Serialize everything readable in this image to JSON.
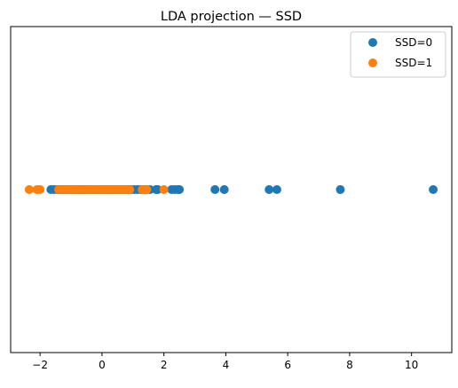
{
  "chart_data": {
    "type": "scatter",
    "title": "LDA projection — SSD",
    "xlabel": "",
    "ylabel": "",
    "xlim": [
      -2.95,
      11.3
    ],
    "ylim": [
      -1,
      1
    ],
    "xticks": [
      -2,
      0,
      2,
      4,
      6,
      8,
      10
    ],
    "xtick_labels": [
      "−2",
      "0",
      "2",
      "4",
      "6",
      "8",
      "10"
    ],
    "yticks": [],
    "grid": false,
    "legend_position": "top-right",
    "series": [
      {
        "name": "SSD=0",
        "color": "#1f77b4",
        "x": [
          -1.65,
          -1.55,
          -1.45,
          -1.35,
          -1.25,
          -1.15,
          -1.05,
          -0.95,
          -0.85,
          -0.75,
          -0.65,
          -0.55,
          -0.45,
          -0.35,
          -0.25,
          -0.15,
          -0.05,
          0.05,
          0.15,
          0.25,
          0.35,
          0.45,
          0.55,
          0.65,
          0.75,
          0.85,
          0.95,
          1.05,
          1.15,
          1.25,
          1.35,
          1.45,
          1.55,
          1.75,
          1.8,
          2.25,
          2.35,
          2.45,
          2.5,
          3.65,
          3.95,
          5.4,
          5.65,
          7.7,
          10.7
        ],
        "y": [
          0,
          0,
          0,
          0,
          0,
          0,
          0,
          0,
          0,
          0,
          0,
          0,
          0,
          0,
          0,
          0,
          0,
          0,
          0,
          0,
          0,
          0,
          0,
          0,
          0,
          0,
          0,
          0,
          0,
          0,
          0,
          0,
          0,
          0,
          0,
          0,
          0,
          0,
          0,
          0,
          0,
          0,
          0,
          0,
          0
        ]
      },
      {
        "name": "SSD=1",
        "color": "#ff7f0e",
        "x": [
          -2.35,
          -2.1,
          -2.0,
          -1.4,
          -1.3,
          -1.2,
          -1.1,
          -1.0,
          -0.9,
          -0.8,
          -0.7,
          -0.6,
          -0.5,
          -0.4,
          -0.3,
          -0.2,
          -0.1,
          0.0,
          0.1,
          0.2,
          0.3,
          0.4,
          0.5,
          0.6,
          0.7,
          0.8,
          0.9,
          1.3,
          1.4,
          1.45,
          2.0
        ],
        "y": [
          0,
          0,
          0,
          0,
          0,
          0,
          0,
          0,
          0,
          0,
          0,
          0,
          0,
          0,
          0,
          0,
          0,
          0,
          0,
          0,
          0,
          0,
          0,
          0,
          0,
          0,
          0,
          0,
          0,
          0,
          0
        ]
      }
    ]
  }
}
